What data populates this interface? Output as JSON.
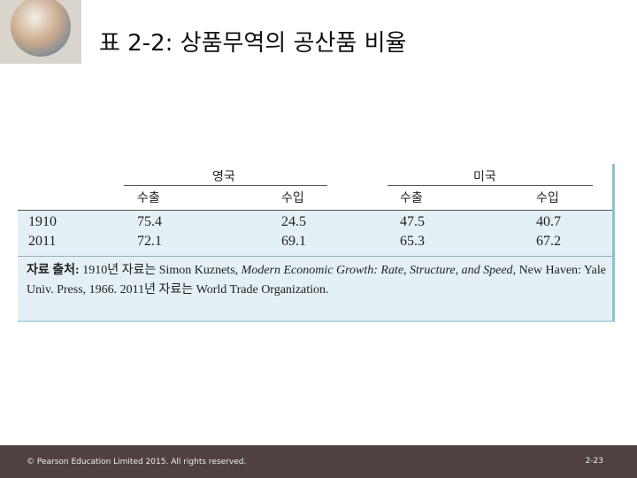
{
  "header": {
    "title": "표 2-2: 상품무역의 공산품 비율"
  },
  "table": {
    "groups": [
      "영국",
      "미국"
    ],
    "columns": [
      "수출",
      "수입",
      "수출",
      "수입"
    ],
    "rows": [
      [
        "1910",
        "75.4",
        "24.5",
        "47.5",
        "40.7"
      ],
      [
        "2011",
        "72.1",
        "69.1",
        "65.3",
        "67.2"
      ]
    ]
  },
  "note": {
    "label": "자료 출처:",
    "text1": "1910년 자료는 Simon Kuznets,",
    "italic": "Modern Economic Growth: Rate, Structure, and Speed",
    "text2": ", New Haven: Yale Univ. Press, 1966. 2011년 자료는 World Trade Organization."
  },
  "footer": {
    "copyright": "© Pearson Education Limited 2015. All rights reserved.",
    "page": "2-23"
  }
}
